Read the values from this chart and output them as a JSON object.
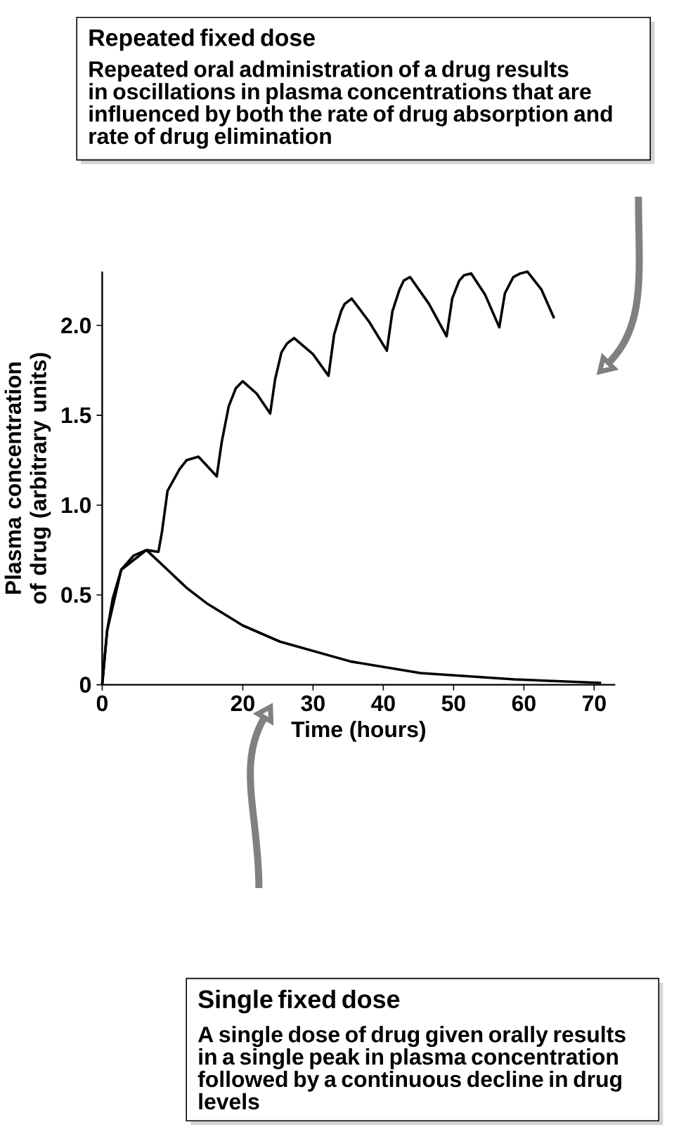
{
  "chart_data": {
    "type": "line",
    "xlabel": "Time (hours)",
    "ylabel": "Plasma concentration of drug (arbitrary units)",
    "xlim": [
      0,
      73
    ],
    "ylim": [
      0,
      2.3
    ],
    "xticks": [
      0,
      20,
      30,
      40,
      50,
      60,
      70
    ],
    "yticks": [
      0,
      0.5,
      {
        "value": 1,
        "label": "1.0"
      },
      1.5,
      {
        "value": 2,
        "label": "2.0"
      }
    ],
    "series": [
      {
        "color": "#000000",
        "x": [
          0,
          0.7,
          2.7,
          6.3,
          8,
          8.5,
          9.3,
          11,
          12,
          13.7,
          16.3,
          17,
          18,
          19,
          20,
          22,
          23.9,
          24.6,
          25.5,
          26.3,
          27.3,
          30,
          32.2,
          33,
          34,
          34.5,
          35.5,
          38,
          40.5,
          41.3,
          42.3,
          42.9,
          43.8,
          46.5,
          49,
          49.8,
          50.8,
          51.5,
          52.5,
          54.5,
          56.5,
          57.3,
          58.5,
          59.5,
          60.5,
          62.5,
          64.3
        ],
        "values": [
          0,
          0.3,
          0.64,
          0.75,
          0.74,
          0.85,
          1.08,
          1.2,
          1.25,
          1.27,
          1.16,
          1.35,
          1.55,
          1.65,
          1.69,
          1.62,
          1.51,
          1.7,
          1.85,
          1.9,
          1.93,
          1.84,
          1.72,
          1.95,
          2.08,
          2.12,
          2.15,
          2.02,
          1.86,
          2.08,
          2.2,
          2.25,
          2.27,
          2.12,
          1.94,
          2.15,
          2.25,
          2.28,
          2.29,
          2.17,
          1.99,
          2.18,
          2.27,
          2.29,
          2.3,
          2.2,
          2.04
        ]
      },
      {
        "color": "#000000",
        "x": [
          0,
          0.7,
          1.5,
          2.7,
          4.5,
          6.3,
          9.3,
          12,
          15,
          20,
          25.3,
          35.3,
          45.3,
          58.7,
          71
        ],
        "values": [
          0,
          0.3,
          0.48,
          0.64,
          0.72,
          0.75,
          0.64,
          0.54,
          0.45,
          0.33,
          0.24,
          0.13,
          0.065,
          0.03,
          0.01
        ]
      }
    ],
    "annotations": [
      "Repeated fixed dose",
      "Repeated oral administration of a drug results in oscillations in plasma concentrations that are influenced by both the rate of drug absorption and rate of drug elimination",
      "Single fixed dose",
      "A single dose of drug given orally results in a single peak in plasma concentration followed by a continuous decline in drug levels"
    ]
  }
}
